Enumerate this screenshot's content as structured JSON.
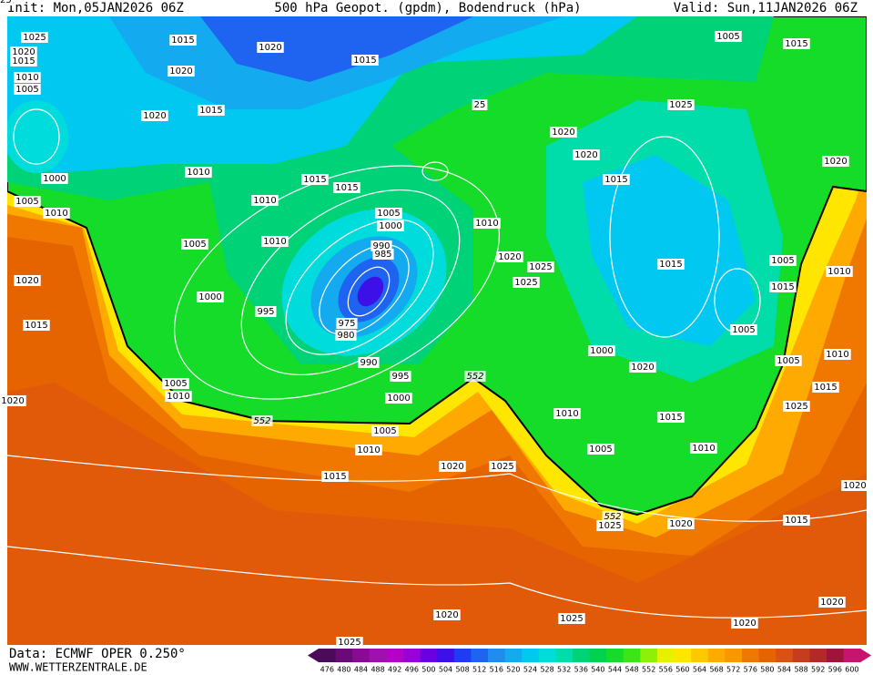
{
  "header": {
    "init": "Init: Mon,05JAN2026 06Z",
    "title": "500 hPa Geopot. (gpdm), Bodendruck (hPa)",
    "valid": "Valid: Sun,11JAN2026 06Z"
  },
  "isobar_labels": [
    "1025",
    "1020",
    "1015",
    "1010",
    "1005",
    "1015",
    "1020",
    "1015",
    "1020",
    "1020",
    "1015",
    "1010",
    "1000",
    "1005",
    "1010",
    "1015",
    "1015",
    "1010",
    "1010",
    "1005",
    "1005",
    "1000",
    "990",
    "985",
    "975",
    "980",
    "995",
    "1000",
    "990",
    "995",
    "1000",
    "1005",
    "1010",
    "1005",
    "1010",
    "1015",
    "1020",
    "1015",
    "1020",
    "25",
    "1020",
    "1020",
    "1015",
    "1010",
    "1020",
    "1025",
    "1025",
    "1025",
    "1005",
    "1015",
    "1020",
    "1015",
    "1005",
    "1010",
    "1015",
    "1005",
    "1000",
    "1020",
    "1010",
    "1015",
    "1005",
    "1010",
    "1005",
    "1010",
    "1025",
    "1015",
    "1020",
    "1025",
    "1025",
    "1020",
    "1015",
    "1020",
    "1020",
    "1020",
    "1020",
    "1025",
    "1025",
    "1025"
  ],
  "contour_labels": [
    "552",
    "552",
    "552"
  ],
  "footer": {
    "data": "Data: ECMWF OPER 0.250°",
    "site": "WWW.WETTERZENTRALE.DE"
  },
  "legend": {
    "values": [
      476,
      480,
      484,
      488,
      492,
      496,
      500,
      504,
      508,
      512,
      516,
      520,
      524,
      528,
      532,
      536,
      540,
      544,
      548,
      552,
      556,
      560,
      564,
      568,
      572,
      576,
      580,
      584,
      588,
      592,
      596,
      600
    ],
    "colors": [
      "#4b0a5a",
      "#6a0a78",
      "#8a0a96",
      "#a010b0",
      "#b400c8",
      "#9a00d8",
      "#6a00e0",
      "#3c10e6",
      "#1e3cf0",
      "#1e64f0",
      "#1e8cf0",
      "#14aaf0",
      "#00c8f0",
      "#00dcdc",
      "#00dcaa",
      "#00d278",
      "#00d250",
      "#14dc28",
      "#3ce614",
      "#8cf00a",
      "#e6f000",
      "#ffe600",
      "#ffc800",
      "#ffaa00",
      "#fa9600",
      "#f07800",
      "#e66400",
      "#dc5014",
      "#c83c1e",
      "#b42828",
      "#a0143c",
      "#c8146e"
    ]
  }
}
